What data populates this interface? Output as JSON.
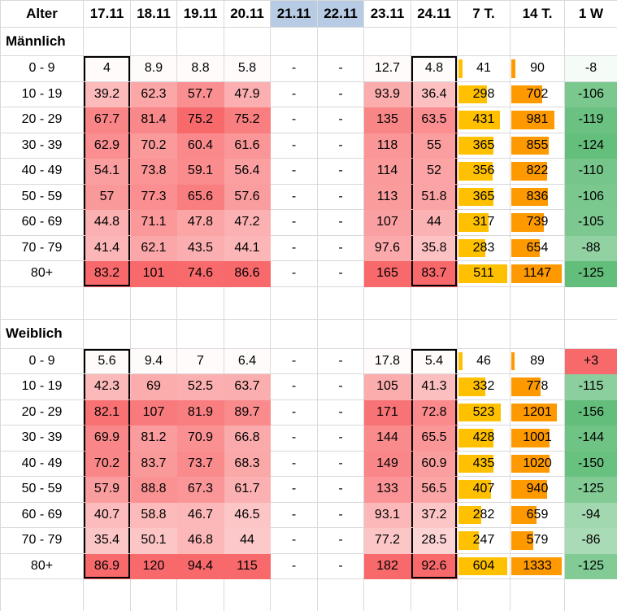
{
  "header": {
    "age_col": "Alter",
    "date_cols": [
      "17.11",
      "18.11",
      "19.11",
      "20.11",
      "21.11",
      "22.11",
      "23.11",
      "24.11"
    ],
    "highlighted_dates": [
      "21.11",
      "22.11"
    ],
    "summary_cols": [
      "7 T.",
      "14 T.",
      "1 W"
    ]
  },
  "selection": {
    "columns": [
      "17.11",
      "24.11"
    ]
  },
  "sections": [
    {
      "label": "Männlich",
      "rows": [
        {
          "age": "0 - 9",
          "dates": [
            "4",
            "8.9",
            "8.8",
            "5.8",
            "-",
            "-",
            "12.7",
            "4.8"
          ],
          "t7": "41",
          "t14": "90",
          "w1": "-8"
        },
        {
          "age": "10 - 19",
          "dates": [
            "39.2",
            "62.3",
            "57.7",
            "47.9",
            "-",
            "-",
            "93.9",
            "36.4"
          ],
          "t7": "298",
          "t14": "702",
          "w1": "-106"
        },
        {
          "age": "20 - 29",
          "dates": [
            "67.7",
            "81.4",
            "75.2",
            "75.2",
            "-",
            "-",
            "135",
            "63.5"
          ],
          "t7": "431",
          "t14": "981",
          "w1": "-119"
        },
        {
          "age": "30 - 39",
          "dates": [
            "62.9",
            "70.2",
            "60.4",
            "61.6",
            "-",
            "-",
            "118",
            "55"
          ],
          "t7": "365",
          "t14": "855",
          "w1": "-124"
        },
        {
          "age": "40 - 49",
          "dates": [
            "54.1",
            "73.8",
            "59.1",
            "56.4",
            "-",
            "-",
            "114",
            "52"
          ],
          "t7": "356",
          "t14": "822",
          "w1": "-110"
        },
        {
          "age": "50 - 59",
          "dates": [
            "57",
            "77.3",
            "65.6",
            "57.6",
            "-",
            "-",
            "113",
            "51.8"
          ],
          "t7": "365",
          "t14": "836",
          "w1": "-106"
        },
        {
          "age": "60 - 69",
          "dates": [
            "44.8",
            "71.1",
            "47.8",
            "47.2",
            "-",
            "-",
            "107",
            "44"
          ],
          "t7": "317",
          "t14": "739",
          "w1": "-105"
        },
        {
          "age": "70 - 79",
          "dates": [
            "41.4",
            "62.1",
            "43.5",
            "44.1",
            "-",
            "-",
            "97.6",
            "35.8"
          ],
          "t7": "283",
          "t14": "654",
          "w1": "-88"
        },
        {
          "age": "80+",
          "dates": [
            "83.2",
            "101",
            "74.6",
            "86.6",
            "-",
            "-",
            "165",
            "83.7"
          ],
          "t7": "511",
          "t14": "1147",
          "w1": "-125"
        }
      ]
    },
    {
      "label": "Weiblich",
      "rows": [
        {
          "age": "0 - 9",
          "dates": [
            "5.6",
            "9.4",
            "7",
            "6.4",
            "-",
            "-",
            "17.8",
            "5.4"
          ],
          "t7": "46",
          "t14": "89",
          "w1": "+3"
        },
        {
          "age": "10 - 19",
          "dates": [
            "42.3",
            "69",
            "52.5",
            "63.7",
            "-",
            "-",
            "105",
            "41.3"
          ],
          "t7": "332",
          "t14": "778",
          "w1": "-115"
        },
        {
          "age": "20 - 29",
          "dates": [
            "82.1",
            "107",
            "81.9",
            "89.7",
            "-",
            "-",
            "171",
            "72.8"
          ],
          "t7": "523",
          "t14": "1201",
          "w1": "-156"
        },
        {
          "age": "30 - 39",
          "dates": [
            "69.9",
            "81.2",
            "70.9",
            "66.8",
            "-",
            "-",
            "144",
            "65.5"
          ],
          "t7": "428",
          "t14": "1001",
          "w1": "-144"
        },
        {
          "age": "40 - 49",
          "dates": [
            "70.2",
            "83.7",
            "73.7",
            "68.3",
            "-",
            "-",
            "149",
            "60.9"
          ],
          "t7": "435",
          "t14": "1020",
          "w1": "-150"
        },
        {
          "age": "50 - 59",
          "dates": [
            "57.9",
            "88.8",
            "67.3",
            "61.7",
            "-",
            "-",
            "133",
            "56.5"
          ],
          "t7": "407",
          "t14": "940",
          "w1": "-125"
        },
        {
          "age": "60 - 69",
          "dates": [
            "40.7",
            "58.8",
            "46.7",
            "46.5",
            "-",
            "-",
            "93.1",
            "37.2"
          ],
          "t7": "282",
          "t14": "659",
          "w1": "-94"
        },
        {
          "age": "70 - 79",
          "dates": [
            "35.4",
            "50.1",
            "46.8",
            "44",
            "-",
            "-",
            "77.2",
            "28.5"
          ],
          "t7": "247",
          "t14": "579",
          "w1": "-86"
        },
        {
          "age": "80+",
          "dates": [
            "86.9",
            "120",
            "94.4",
            "115",
            "-",
            "-",
            "182",
            "92.6"
          ],
          "t7": "604",
          "t14": "1333",
          "w1": "-125"
        }
      ]
    }
  ],
  "colors": {
    "heat_max": "#F8696B",
    "green_max": "#63BE7B",
    "bar7": "#FFC000",
    "bar14": "#FF9900",
    "header_highlight": "#B7CCE4",
    "gridline": "#D9D9D9",
    "selection_border": "#000000"
  }
}
